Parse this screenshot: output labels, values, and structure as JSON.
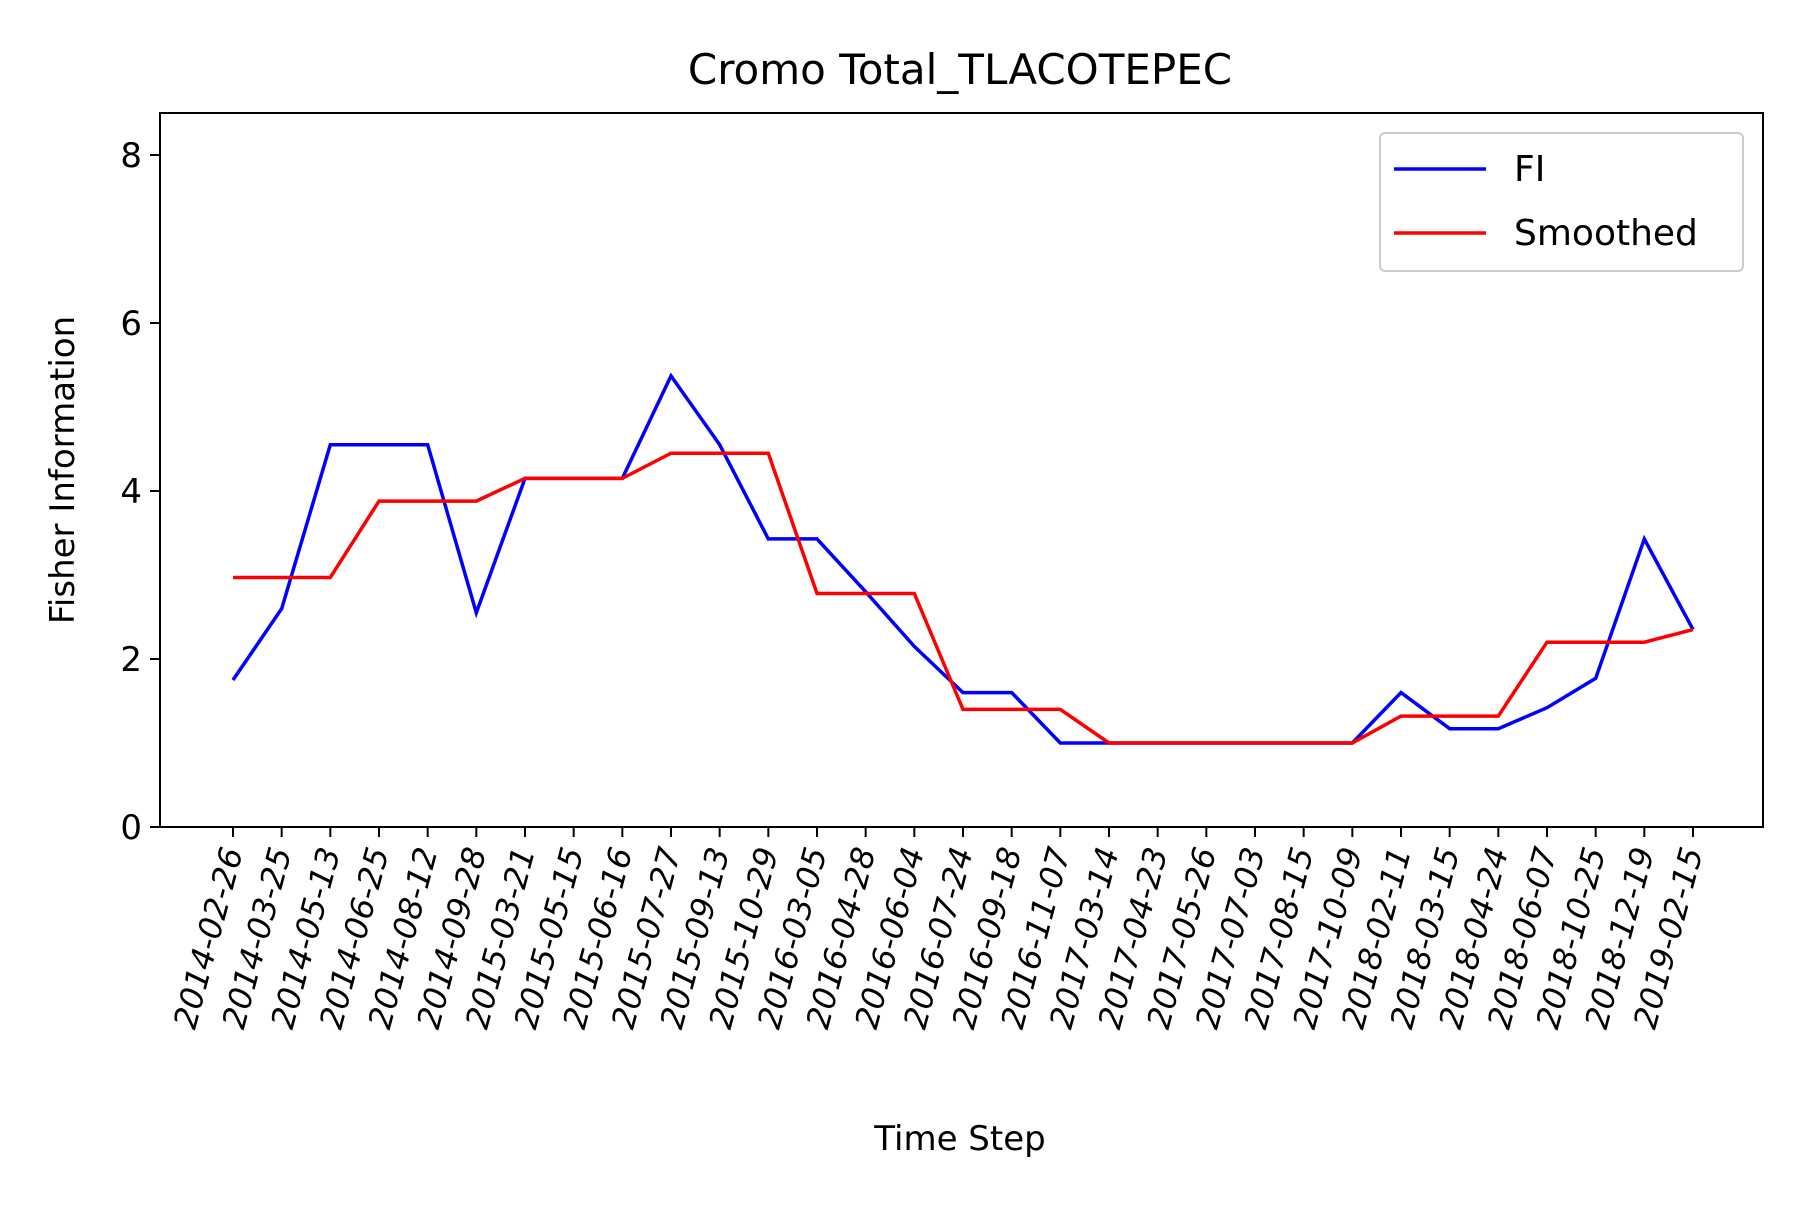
{
  "chart_data": {
    "type": "line",
    "title": "Cromo Total_TLACOTEPEC",
    "xlabel": "Time Step",
    "ylabel": "Fisher Information",
    "ylim": [
      0,
      8.5
    ],
    "yticks": [
      0,
      2,
      4,
      6,
      8
    ],
    "grid": false,
    "legend_position": "top-right",
    "categories": [
      "2014-02-26",
      "2014-03-25",
      "2014-05-13",
      "2014-06-25",
      "2014-08-12",
      "2014-09-28",
      "2015-03-21",
      "2015-05-15",
      "2015-06-16",
      "2015-07-27",
      "2015-09-13",
      "2015-10-29",
      "2016-03-05",
      "2016-04-28",
      "2016-06-04",
      "2016-07-24",
      "2016-09-18",
      "2016-11-07",
      "2017-03-14",
      "2017-04-23",
      "2017-05-26",
      "2017-07-03",
      "2017-08-15",
      "2017-10-09",
      "2018-02-11",
      "2018-03-15",
      "2018-04-24",
      "2018-06-07",
      "2018-10-25",
      "2018-12-19",
      "2019-02-15"
    ],
    "series": [
      {
        "name": "FI",
        "color": "#0000ff",
        "values": [
          1.75,
          2.6,
          4.55,
          4.55,
          4.55,
          2.55,
          4.15,
          4.15,
          4.15,
          5.37,
          4.55,
          3.43,
          3.43,
          2.8,
          2.15,
          1.6,
          1.6,
          1.0,
          1.0,
          1.0,
          1.0,
          1.0,
          1.0,
          1.0,
          1.6,
          1.17,
          1.17,
          1.42,
          1.77,
          3.43,
          2.35
        ]
      },
      {
        "name": "Smoothed",
        "color": "#ff0000",
        "values": [
          2.97,
          2.97,
          2.97,
          3.88,
          3.88,
          3.88,
          4.15,
          4.15,
          4.15,
          4.45,
          4.45,
          4.45,
          2.78,
          2.78,
          2.78,
          1.4,
          1.4,
          1.4,
          1.0,
          1.0,
          1.0,
          1.0,
          1.0,
          1.0,
          1.32,
          1.32,
          1.32,
          2.2,
          2.2,
          2.2,
          2.35
        ]
      }
    ]
  }
}
